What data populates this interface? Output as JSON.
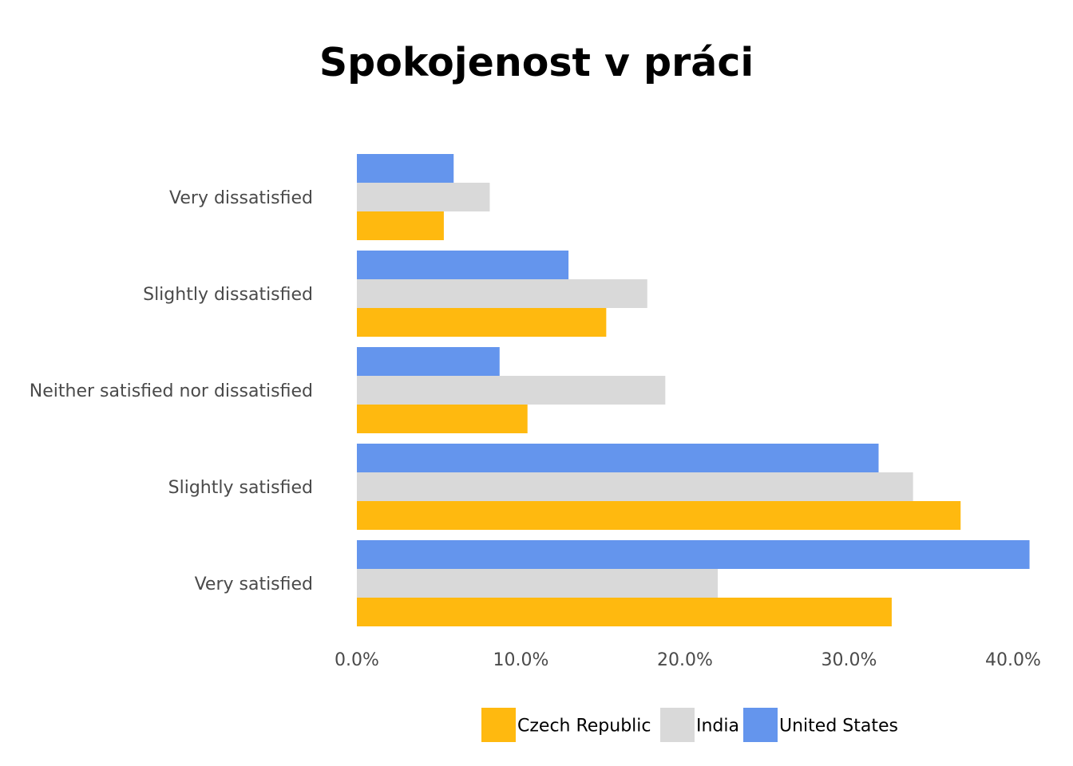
{
  "chart_data": {
    "type": "bar",
    "orientation": "horizontal",
    "title": "Spokojenost v práci",
    "xlabel": "",
    "ylabel": "",
    "categories": [
      "Very dissatisfied",
      "Slightly dissatisfied",
      "Neither satisfied nor dissatisfied",
      "Slightly satisfied",
      "Very satisfied"
    ],
    "series": [
      {
        "name": "Czech Republic",
        "color": "#ffb90f",
        "values": [
          5.3,
          15.2,
          10.4,
          36.8,
          32.6
        ]
      },
      {
        "name": "India",
        "color": "#d9d9d9",
        "values": [
          8.1,
          17.7,
          18.8,
          33.9,
          22.0
        ]
      },
      {
        "name": "United States",
        "color": "#6495ed",
        "values": [
          5.9,
          12.9,
          8.7,
          31.8,
          41.0
        ]
      }
    ],
    "xlim": [
      0,
      41
    ],
    "xticks": [
      "0.0%",
      "10.0%",
      "20.0%",
      "30.0%",
      "40.0%"
    ],
    "xtick_values": [
      0,
      10,
      20,
      30,
      40
    ],
    "grid": false,
    "legend_position": "bottom"
  }
}
